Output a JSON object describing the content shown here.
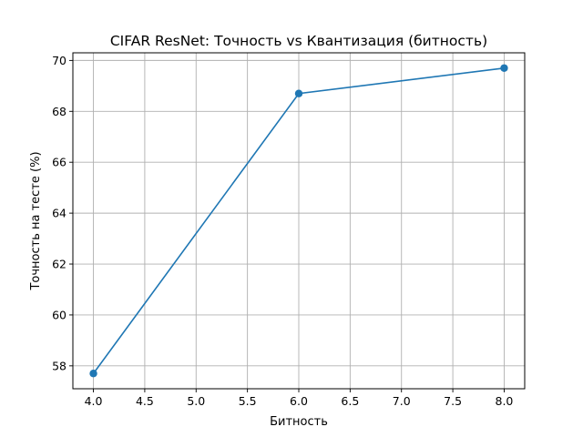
{
  "chart_data": {
    "type": "line",
    "title": "CIFAR ResNet: Точность vs Квантизация (битность)",
    "xlabel": "Битность",
    "ylabel": "Точность на тесте (%)",
    "xlim": [
      3.8,
      8.2
    ],
    "ylim": [
      57.1,
      70.3
    ],
    "xticks": [
      4.0,
      4.5,
      5.0,
      5.5,
      6.0,
      6.5,
      7.0,
      7.5,
      8.0
    ],
    "xtick_labels": [
      "4.0",
      "4.5",
      "5.0",
      "5.5",
      "6.0",
      "6.5",
      "7.0",
      "7.5",
      "8.0"
    ],
    "yticks": [
      58,
      60,
      62,
      64,
      66,
      68,
      70
    ],
    "ytick_labels": [
      "58",
      "60",
      "62",
      "64",
      "66",
      "68",
      "70"
    ],
    "grid": true,
    "series": [
      {
        "x": [
          4,
          6,
          8
        ],
        "y": [
          57.7,
          68.7,
          69.7
        ],
        "color": "#1f77b4",
        "marker": "circle"
      }
    ]
  }
}
